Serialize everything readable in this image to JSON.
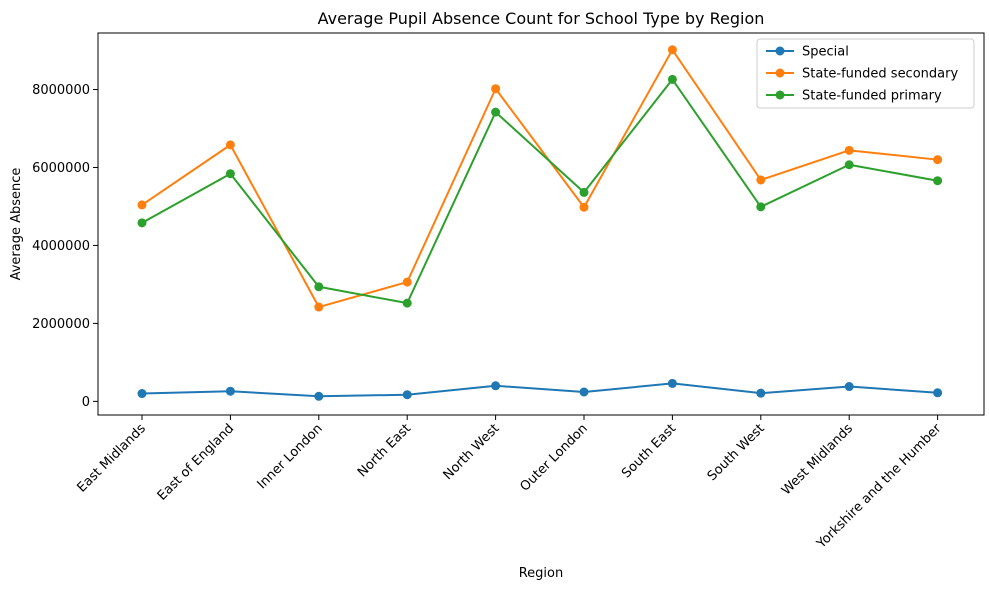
{
  "chart_data": {
    "type": "line",
    "title": "Average Pupil Absence Count for School Type by Region",
    "xlabel": "Region",
    "ylabel": "Average Absence",
    "categories": [
      "East Midlands",
      "East of England",
      "Inner London",
      "North East",
      "North West",
      "Outer London",
      "South East",
      "South West",
      "West Midlands",
      "Yorkshire and the Humber"
    ],
    "ylim": [
      -350000,
      9450000
    ],
    "yticks": [
      0,
      2000000,
      4000000,
      6000000,
      8000000
    ],
    "ytick_labels": [
      "0",
      "2000000",
      "4000000",
      "6000000",
      "8000000"
    ],
    "grid": false,
    "legend_position": "top-right",
    "series": [
      {
        "name": "Special",
        "color": "#1f77b4",
        "values": [
          200000,
          260000,
          130000,
          170000,
          400000,
          240000,
          460000,
          210000,
          380000,
          220000
        ]
      },
      {
        "name": "State-funded secondary",
        "color": "#ff7f0e",
        "values": [
          5040000,
          6580000,
          2420000,
          3060000,
          8020000,
          4980000,
          9020000,
          5680000,
          6440000,
          6200000
        ]
      },
      {
        "name": "State-funded primary",
        "color": "#2ca02c",
        "values": [
          4580000,
          5840000,
          2940000,
          2520000,
          7420000,
          5360000,
          8260000,
          4990000,
          6070000,
          5660000
        ]
      }
    ]
  }
}
